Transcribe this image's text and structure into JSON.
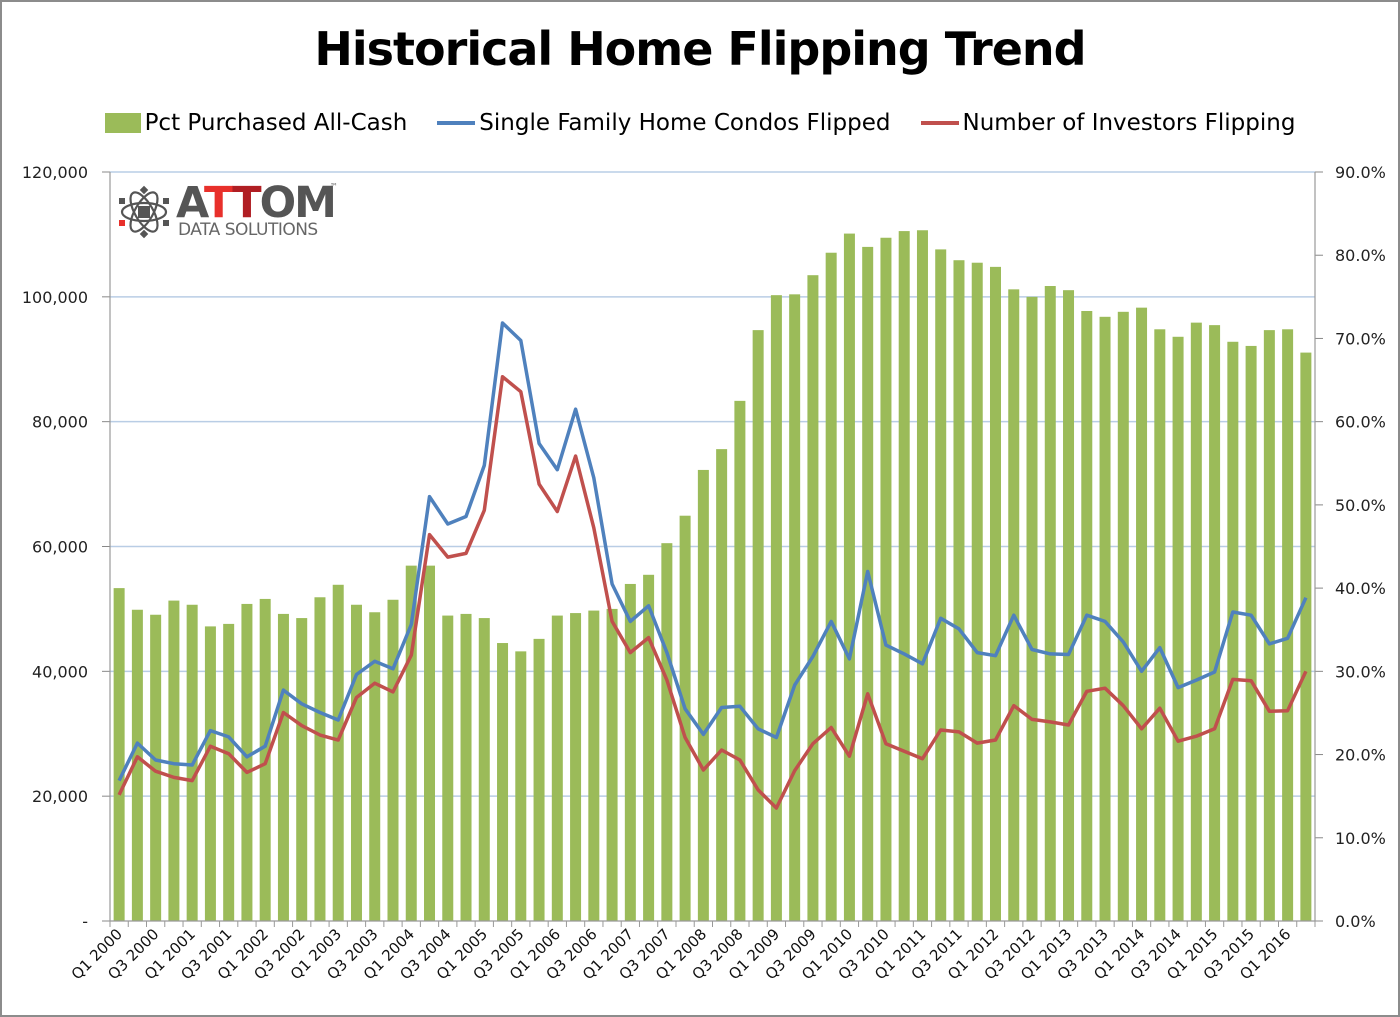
{
  "chart_data": {
    "type": "bar+line",
    "title": "Historical Home Flipping Trend",
    "legend": [
      {
        "label": "Pct Purchased All-Cash",
        "kind": "bar",
        "color": "#9bbb59"
      },
      {
        "label": "Single Family Home Condos Flipped",
        "kind": "line",
        "color": "#4f81bd"
      },
      {
        "label": "Number of Investors Flipping",
        "kind": "line",
        "color": "#c0504d"
      }
    ],
    "legend_position": "top",
    "grid": true,
    "left_axis": {
      "ticks": [
        "-",
        "20,000",
        "40,000",
        "60,000",
        "80,000",
        "100,000",
        "120,000"
      ],
      "range": [
        0,
        120000
      ]
    },
    "right_axis": {
      "ticks": [
        "0.0%",
        "10.0%",
        "20.0%",
        "30.0%",
        "40.0%",
        "50.0%",
        "60.0%",
        "70.0%",
        "80.0%",
        "90.0%"
      ],
      "range": [
        0,
        90
      ]
    },
    "x_tick_labels": [
      "Q1 2000",
      "Q3 2000",
      "Q1 2001",
      "Q3 2001",
      "Q1 2002",
      "Q3 2002",
      "Q1 2003",
      "Q3 2003",
      "Q1 2004",
      "Q3 2004",
      "Q1 2005",
      "Q3 2005",
      "Q1 2006",
      "Q3 2006",
      "Q1 2007",
      "Q3 2007",
      "Q1 2008",
      "Q3 2008",
      "Q1 2009",
      "Q3 2009",
      "Q1 2010",
      "Q3 2010",
      "Q1 2011",
      "Q3 2011",
      "Q1 2012",
      "Q3 2012",
      "Q1 2013",
      "Q3 2013",
      "Q1 2014",
      "Q3 2014",
      "Q1 2015",
      "Q3 2015",
      "Q1 2016"
    ],
    "categories": [
      "Q1 2000",
      "Q2 2000",
      "Q3 2000",
      "Q4 2000",
      "Q1 2001",
      "Q2 2001",
      "Q3 2001",
      "Q4 2001",
      "Q1 2002",
      "Q2 2002",
      "Q3 2002",
      "Q4 2002",
      "Q1 2003",
      "Q2 2003",
      "Q3 2003",
      "Q4 2003",
      "Q1 2004",
      "Q2 2004",
      "Q3 2004",
      "Q4 2004",
      "Q1 2005",
      "Q2 2005",
      "Q3 2005",
      "Q4 2005",
      "Q1 2006",
      "Q2 2006",
      "Q3 2006",
      "Q4 2006",
      "Q1 2007",
      "Q2 2007",
      "Q3 2007",
      "Q4 2007",
      "Q1 2008",
      "Q2 2008",
      "Q3 2008",
      "Q4 2008",
      "Q1 2009",
      "Q2 2009",
      "Q3 2009",
      "Q4 2009",
      "Q1 2010",
      "Q2 2010",
      "Q3 2010",
      "Q4 2010",
      "Q1 2011",
      "Q2 2011",
      "Q3 2011",
      "Q4 2011",
      "Q1 2012",
      "Q2 2012",
      "Q3 2012",
      "Q4 2012",
      "Q1 2013",
      "Q2 2013",
      "Q3 2013",
      "Q4 2013",
      "Q1 2014",
      "Q2 2014",
      "Q3 2014",
      "Q4 2014",
      "Q1 2015",
      "Q2 2015",
      "Q3 2015",
      "Q4 2015",
      "Q1 2016",
      "Q2 2016"
    ],
    "series": [
      {
        "name": "Pct Purchased All-Cash",
        "axis": "right",
        "type": "bar",
        "values": [
          40.0,
          37.4,
          36.8,
          38.5,
          38.0,
          35.4,
          35.7,
          38.1,
          38.7,
          36.9,
          36.4,
          38.9,
          40.4,
          38.0,
          37.1,
          38.6,
          42.7,
          42.7,
          36.7,
          36.9,
          36.4,
          33.4,
          32.4,
          33.9,
          36.7,
          37.0,
          37.3,
          37.5,
          40.5,
          41.6,
          45.4,
          48.7,
          54.2,
          56.7,
          62.5,
          71.0,
          75.2,
          75.3,
          77.6,
          80.3,
          82.6,
          81.0,
          82.1,
          82.9,
          83.0,
          80.7,
          79.4,
          79.1,
          78.6,
          75.9,
          75.0,
          76.3,
          75.8,
          73.3,
          72.6,
          73.2,
          73.7,
          71.1,
          70.2,
          71.9,
          71.6,
          69.6,
          69.1,
          71.0,
          71.1,
          68.3
        ]
      },
      {
        "name": "Single Family Home Condos Flipped",
        "axis": "left",
        "type": "line",
        "values": [
          22500,
          28500,
          25800,
          25200,
          25000,
          30500,
          29500,
          26300,
          28000,
          37000,
          34800,
          33400,
          32200,
          39500,
          41600,
          40400,
          47500,
          68000,
          63600,
          64800,
          73000,
          95800,
          93000,
          76500,
          72300,
          82000,
          71000,
          54000,
          48000,
          50500,
          43000,
          34000,
          29900,
          34200,
          34400,
          30800,
          29400,
          37800,
          42400,
          48000,
          42000,
          56000,
          44200,
          42800,
          41200,
          48500,
          46800,
          43000,
          42500,
          49000,
          43500,
          42800,
          42700,
          49000,
          48000,
          44700,
          40000,
          43800,
          37400,
          38600,
          39900,
          49500,
          49000,
          44400,
          45300,
          51800
        ]
      },
      {
        "name": "Number of Investors Flipping",
        "axis": "left",
        "type": "line",
        "values": [
          20200,
          26300,
          24000,
          23000,
          22500,
          28000,
          26800,
          23800,
          25200,
          33400,
          31300,
          29800,
          29000,
          35800,
          38100,
          36700,
          42600,
          61900,
          58300,
          58900,
          65800,
          87200,
          84800,
          70000,
          65600,
          74500,
          63000,
          48000,
          43000,
          45400,
          38600,
          29400,
          24200,
          27400,
          25800,
          21000,
          18100,
          24100,
          28400,
          31000,
          26400,
          36400,
          28400,
          27200,
          26000,
          30600,
          30300,
          28500,
          29000,
          34500,
          32300,
          31900,
          31400,
          36800,
          37300,
          34500,
          30800,
          34100,
          28800,
          29600,
          30800,
          38700,
          38500,
          33600,
          33700,
          40000
        ]
      }
    ]
  }
}
